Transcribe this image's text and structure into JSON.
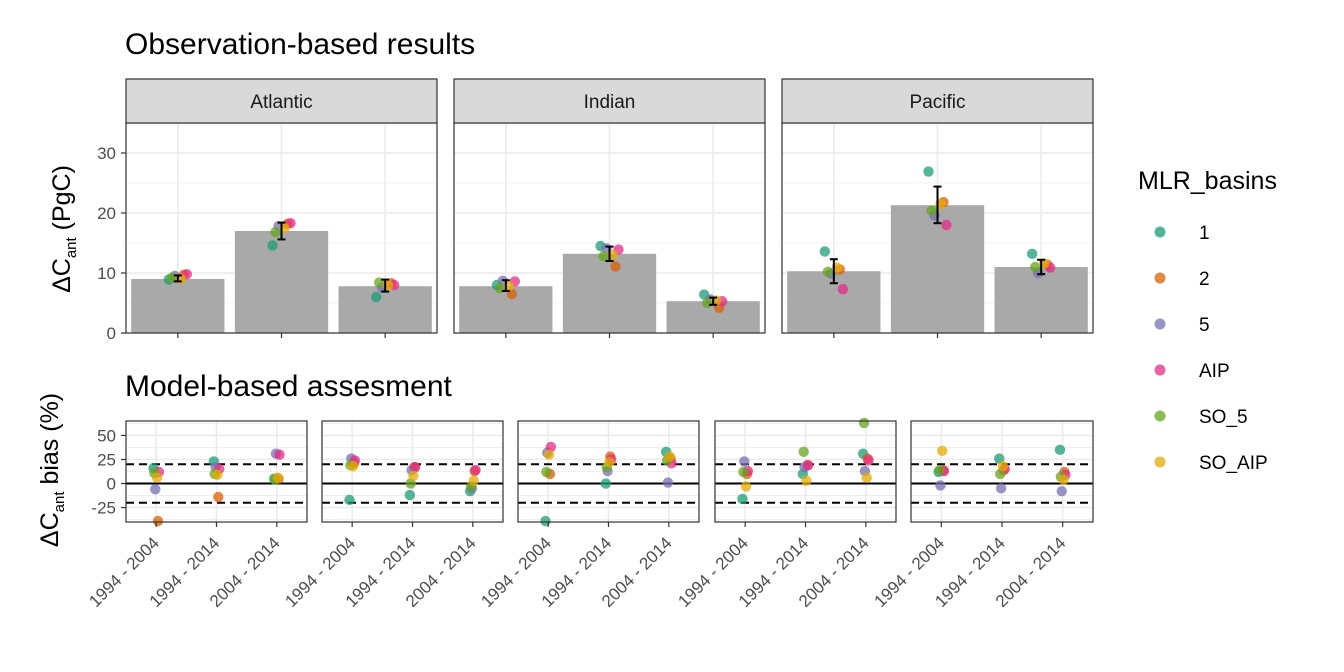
{
  "chart_data": [
    {
      "type": "bar",
      "title": "Observation-based results",
      "ylabel_main": "ΔC",
      "ylabel_sub": "ant",
      "ylabel_unit": " (PgC)",
      "ylim": [
        0,
        35
      ],
      "yticks": [
        0,
        10,
        20,
        30
      ],
      "grid": true,
      "panels": [
        {
          "name": "Atlantic",
          "categories": [
            "1994 - 2004",
            "1994 - 2014",
            "2004 - 2014"
          ],
          "bars": [
            9.0,
            17.0,
            7.8
          ],
          "errors": [
            [
              8.6,
              9.6
            ],
            [
              15.6,
              18.4
            ],
            [
              6.9,
              8.9
            ]
          ],
          "points": [
            [
              {
                "g": "1",
                "v": 8.9
              },
              {
                "g": "2",
                "v": 9.7
              },
              {
                "g": "5",
                "v": 9.5
              },
              {
                "g": "AIP",
                "v": 9.8
              },
              {
                "g": "SO_5",
                "v": 9.2
              },
              {
                "g": "SO_AIP",
                "v": 9.0
              }
            ],
            [
              {
                "g": "1",
                "v": 14.6
              },
              {
                "g": "2",
                "v": 18.2
              },
              {
                "g": "5",
                "v": 17.8
              },
              {
                "g": "AIP",
                "v": 18.3
              },
              {
                "g": "SO_5",
                "v": 16.8
              },
              {
                "g": "SO_AIP",
                "v": 17.5
              }
            ],
            [
              {
                "g": "1",
                "v": 6.0
              },
              {
                "g": "2",
                "v": 8.3
              },
              {
                "g": "5",
                "v": 7.6
              },
              {
                "g": "AIP",
                "v": 8.0
              },
              {
                "g": "SO_5",
                "v": 8.4
              },
              {
                "g": "SO_AIP",
                "v": 7.9
              }
            ]
          ]
        },
        {
          "name": "Indian",
          "categories": [
            "1994 - 2004",
            "1994 - 2014",
            "2004 - 2014"
          ],
          "bars": [
            7.8,
            13.2,
            5.3
          ],
          "errors": [
            [
              7.0,
              8.8
            ],
            [
              12.0,
              14.4
            ],
            [
              4.7,
              5.9
            ]
          ],
          "points": [
            [
              {
                "g": "1",
                "v": 8.0
              },
              {
                "g": "2",
                "v": 6.5
              },
              {
                "g": "5",
                "v": 8.7
              },
              {
                "g": "AIP",
                "v": 8.6
              },
              {
                "g": "SO_5",
                "v": 7.5
              },
              {
                "g": "SO_AIP",
                "v": 7.8
              }
            ],
            [
              {
                "g": "1",
                "v": 14.5
              },
              {
                "g": "2",
                "v": 11.1
              },
              {
                "g": "5",
                "v": 14.1
              },
              {
                "g": "AIP",
                "v": 13.9
              },
              {
                "g": "SO_5",
                "v": 12.8
              },
              {
                "g": "SO_AIP",
                "v": 13.0
              }
            ],
            [
              {
                "g": "1",
                "v": 6.4
              },
              {
                "g": "2",
                "v": 4.2
              },
              {
                "g": "5",
                "v": 5.6
              },
              {
                "g": "AIP",
                "v": 5.3
              },
              {
                "g": "SO_5",
                "v": 5.0
              },
              {
                "g": "SO_AIP",
                "v": 5.4
              }
            ]
          ]
        },
        {
          "name": "Pacific",
          "categories": [
            "1994 - 2004",
            "1994 - 2014",
            "2004 - 2014"
          ],
          "bars": [
            10.3,
            21.3,
            11.0
          ],
          "errors": [
            [
              8.3,
              12.3
            ],
            [
              18.3,
              24.4
            ],
            [
              9.8,
              12.2
            ]
          ],
          "points": [
            [
              {
                "g": "1",
                "v": 13.6
              },
              {
                "g": "2",
                "v": 10.6
              },
              {
                "g": "5",
                "v": 9.9
              },
              {
                "g": "AIP",
                "v": 7.3
              },
              {
                "g": "SO_5",
                "v": 10.2
              },
              {
                "g": "SO_AIP",
                "v": 10.9
              }
            ],
            [
              {
                "g": "1",
                "v": 26.9
              },
              {
                "g": "2",
                "v": 21.8
              },
              {
                "g": "5",
                "v": 19.6
              },
              {
                "g": "AIP",
                "v": 18.0
              },
              {
                "g": "SO_5",
                "v": 20.4
              },
              {
                "g": "SO_AIP",
                "v": 21.5
              }
            ],
            [
              {
                "g": "1",
                "v": 13.2
              },
              {
                "g": "2",
                "v": 11.4
              },
              {
                "g": "5",
                "v": 10.0
              },
              {
                "g": "AIP",
                "v": 10.9
              },
              {
                "g": "SO_5",
                "v": 11.0
              },
              {
                "g": "SO_AIP",
                "v": 11.6
              }
            ]
          ]
        }
      ]
    },
    {
      "type": "scatter",
      "title": "Model-based assesment",
      "ylabel_main": "ΔC",
      "ylabel_sub": "ant",
      "ylabel_unit": " bias (%)",
      "ylim": [
        -40,
        65
      ],
      "yticks": [
        -25,
        0,
        25,
        50
      ],
      "hlines_solid": [
        0
      ],
      "hlines_dashed": [
        -20,
        20
      ],
      "grid": true,
      "categories": [
        "1994 - 2004",
        "1994 - 2014",
        "2004 - 2014"
      ],
      "panels": [
        {
          "points": [
            [
              {
                "g": "1",
                "v": 16
              },
              {
                "g": "2",
                "v": -39
              },
              {
                "g": "5",
                "v": -6
              },
              {
                "g": "AIP",
                "v": 12
              },
              {
                "g": "SO_5",
                "v": 11
              },
              {
                "g": "SO_AIP",
                "v": 6
              }
            ],
            [
              {
                "g": "1",
                "v": 23
              },
              {
                "g": "2",
                "v": -14
              },
              {
                "g": "5",
                "v": 17
              },
              {
                "g": "AIP",
                "v": 15
              },
              {
                "g": "SO_5",
                "v": 10
              },
              {
                "g": "SO_AIP",
                "v": 9
              }
            ],
            [
              {
                "g": "1",
                "v": 5
              },
              {
                "g": "2",
                "v": 5
              },
              {
                "g": "5",
                "v": 31
              },
              {
                "g": "AIP",
                "v": 30
              },
              {
                "g": "SO_5",
                "v": 4
              },
              {
                "g": "SO_AIP",
                "v": 6
              }
            ]
          ]
        },
        {
          "points": [
            [
              {
                "g": "1",
                "v": -17
              },
              {
                "g": "2",
                "v": 21
              },
              {
                "g": "5",
                "v": 26
              },
              {
                "g": "AIP",
                "v": 24
              },
              {
                "g": "SO_5",
                "v": 19
              },
              {
                "g": "SO_AIP",
                "v": 18
              }
            ],
            [
              {
                "g": "1",
                "v": -12
              },
              {
                "g": "2",
                "v": 17
              },
              {
                "g": "5",
                "v": 14
              },
              {
                "g": "AIP",
                "v": 17
              },
              {
                "g": "SO_5",
                "v": 0
              },
              {
                "g": "SO_AIP",
                "v": 8
              }
            ],
            [
              {
                "g": "1",
                "v": -8
              },
              {
                "g": "2",
                "v": 13
              },
              {
                "g": "5",
                "v": -5
              },
              {
                "g": "AIP",
                "v": 14
              },
              {
                "g": "SO_5",
                "v": -3
              },
              {
                "g": "SO_AIP",
                "v": 3
              }
            ]
          ]
        },
        {
          "points": [
            [
              {
                "g": "1",
                "v": -45
              },
              {
                "g": "2",
                "v": 10
              },
              {
                "g": "5",
                "v": 32
              },
              {
                "g": "AIP",
                "v": 38
              },
              {
                "g": "SO_5",
                "v": 12
              },
              {
                "g": "SO_AIP",
                "v": 30
              }
            ],
            [
              {
                "g": "1",
                "v": 0
              },
              {
                "g": "2",
                "v": 28
              },
              {
                "g": "5",
                "v": 13
              },
              {
                "g": "AIP",
                "v": 25
              },
              {
                "g": "SO_5",
                "v": 17
              },
              {
                "g": "SO_AIP",
                "v": 22
              }
            ],
            [
              {
                "g": "1",
                "v": 33
              },
              {
                "g": "2",
                "v": 26
              },
              {
                "g": "5",
                "v": 1
              },
              {
                "g": "AIP",
                "v": 21
              },
              {
                "g": "SO_5",
                "v": 24
              },
              {
                "g": "SO_AIP",
                "v": 28
              }
            ]
          ]
        },
        {
          "points": [
            [
              {
                "g": "1",
                "v": -16
              },
              {
                "g": "2",
                "v": 10
              },
              {
                "g": "5",
                "v": 23
              },
              {
                "g": "AIP",
                "v": 13
              },
              {
                "g": "SO_5",
                "v": 12
              },
              {
                "g": "SO_AIP",
                "v": -3
              }
            ],
            [
              {
                "g": "1",
                "v": 10
              },
              {
                "g": "2",
                "v": 19
              },
              {
                "g": "5",
                "v": 17
              },
              {
                "g": "AIP",
                "v": 19
              },
              {
                "g": "SO_5",
                "v": 33
              },
              {
                "g": "SO_AIP",
                "v": 3
              }
            ],
            [
              {
                "g": "1",
                "v": 31
              },
              {
                "g": "2",
                "v": 26
              },
              {
                "g": "5",
                "v": 13
              },
              {
                "g": "AIP",
                "v": 24
              },
              {
                "g": "SO_5",
                "v": 63
              },
              {
                "g": "SO_AIP",
                "v": 6
              }
            ]
          ]
        },
        {
          "points": [
            [
              {
                "g": "1",
                "v": 12
              },
              {
                "g": "2",
                "v": 14
              },
              {
                "g": "5",
                "v": -2
              },
              {
                "g": "AIP",
                "v": 13
              },
              {
                "g": "SO_5",
                "v": 14
              },
              {
                "g": "SO_AIP",
                "v": 34
              }
            ],
            [
              {
                "g": "1",
                "v": 26
              },
              {
                "g": "2",
                "v": 14
              },
              {
                "g": "5",
                "v": -5
              },
              {
                "g": "AIP",
                "v": 15
              },
              {
                "g": "SO_5",
                "v": 10
              },
              {
                "g": "SO_AIP",
                "v": 18
              }
            ],
            [
              {
                "g": "1",
                "v": 35
              },
              {
                "g": "2",
                "v": 12
              },
              {
                "g": "5",
                "v": -8
              },
              {
                "g": "AIP",
                "v": 9
              },
              {
                "g": "SO_5",
                "v": 7
              },
              {
                "g": "SO_AIP",
                "v": 4
              }
            ]
          ]
        }
      ]
    }
  ],
  "legend": {
    "title": "MLR_basins",
    "placement": "right",
    "items": [
      {
        "label": "1",
        "color": "#1b9e77"
      },
      {
        "label": "2",
        "color": "#d95f02"
      },
      {
        "label": "5",
        "color": "#7570b3"
      },
      {
        "label": "AIP",
        "color": "#e7298a"
      },
      {
        "label": "SO_5",
        "color": "#66a61e"
      },
      {
        "label": "SO_AIP",
        "color": "#e6ab02"
      }
    ]
  },
  "style": {
    "bar_color": "#a9a9a9",
    "strip_fill": "#d9d9d9",
    "panel_border": "#333333",
    "grid_color": "#ebebeb"
  }
}
